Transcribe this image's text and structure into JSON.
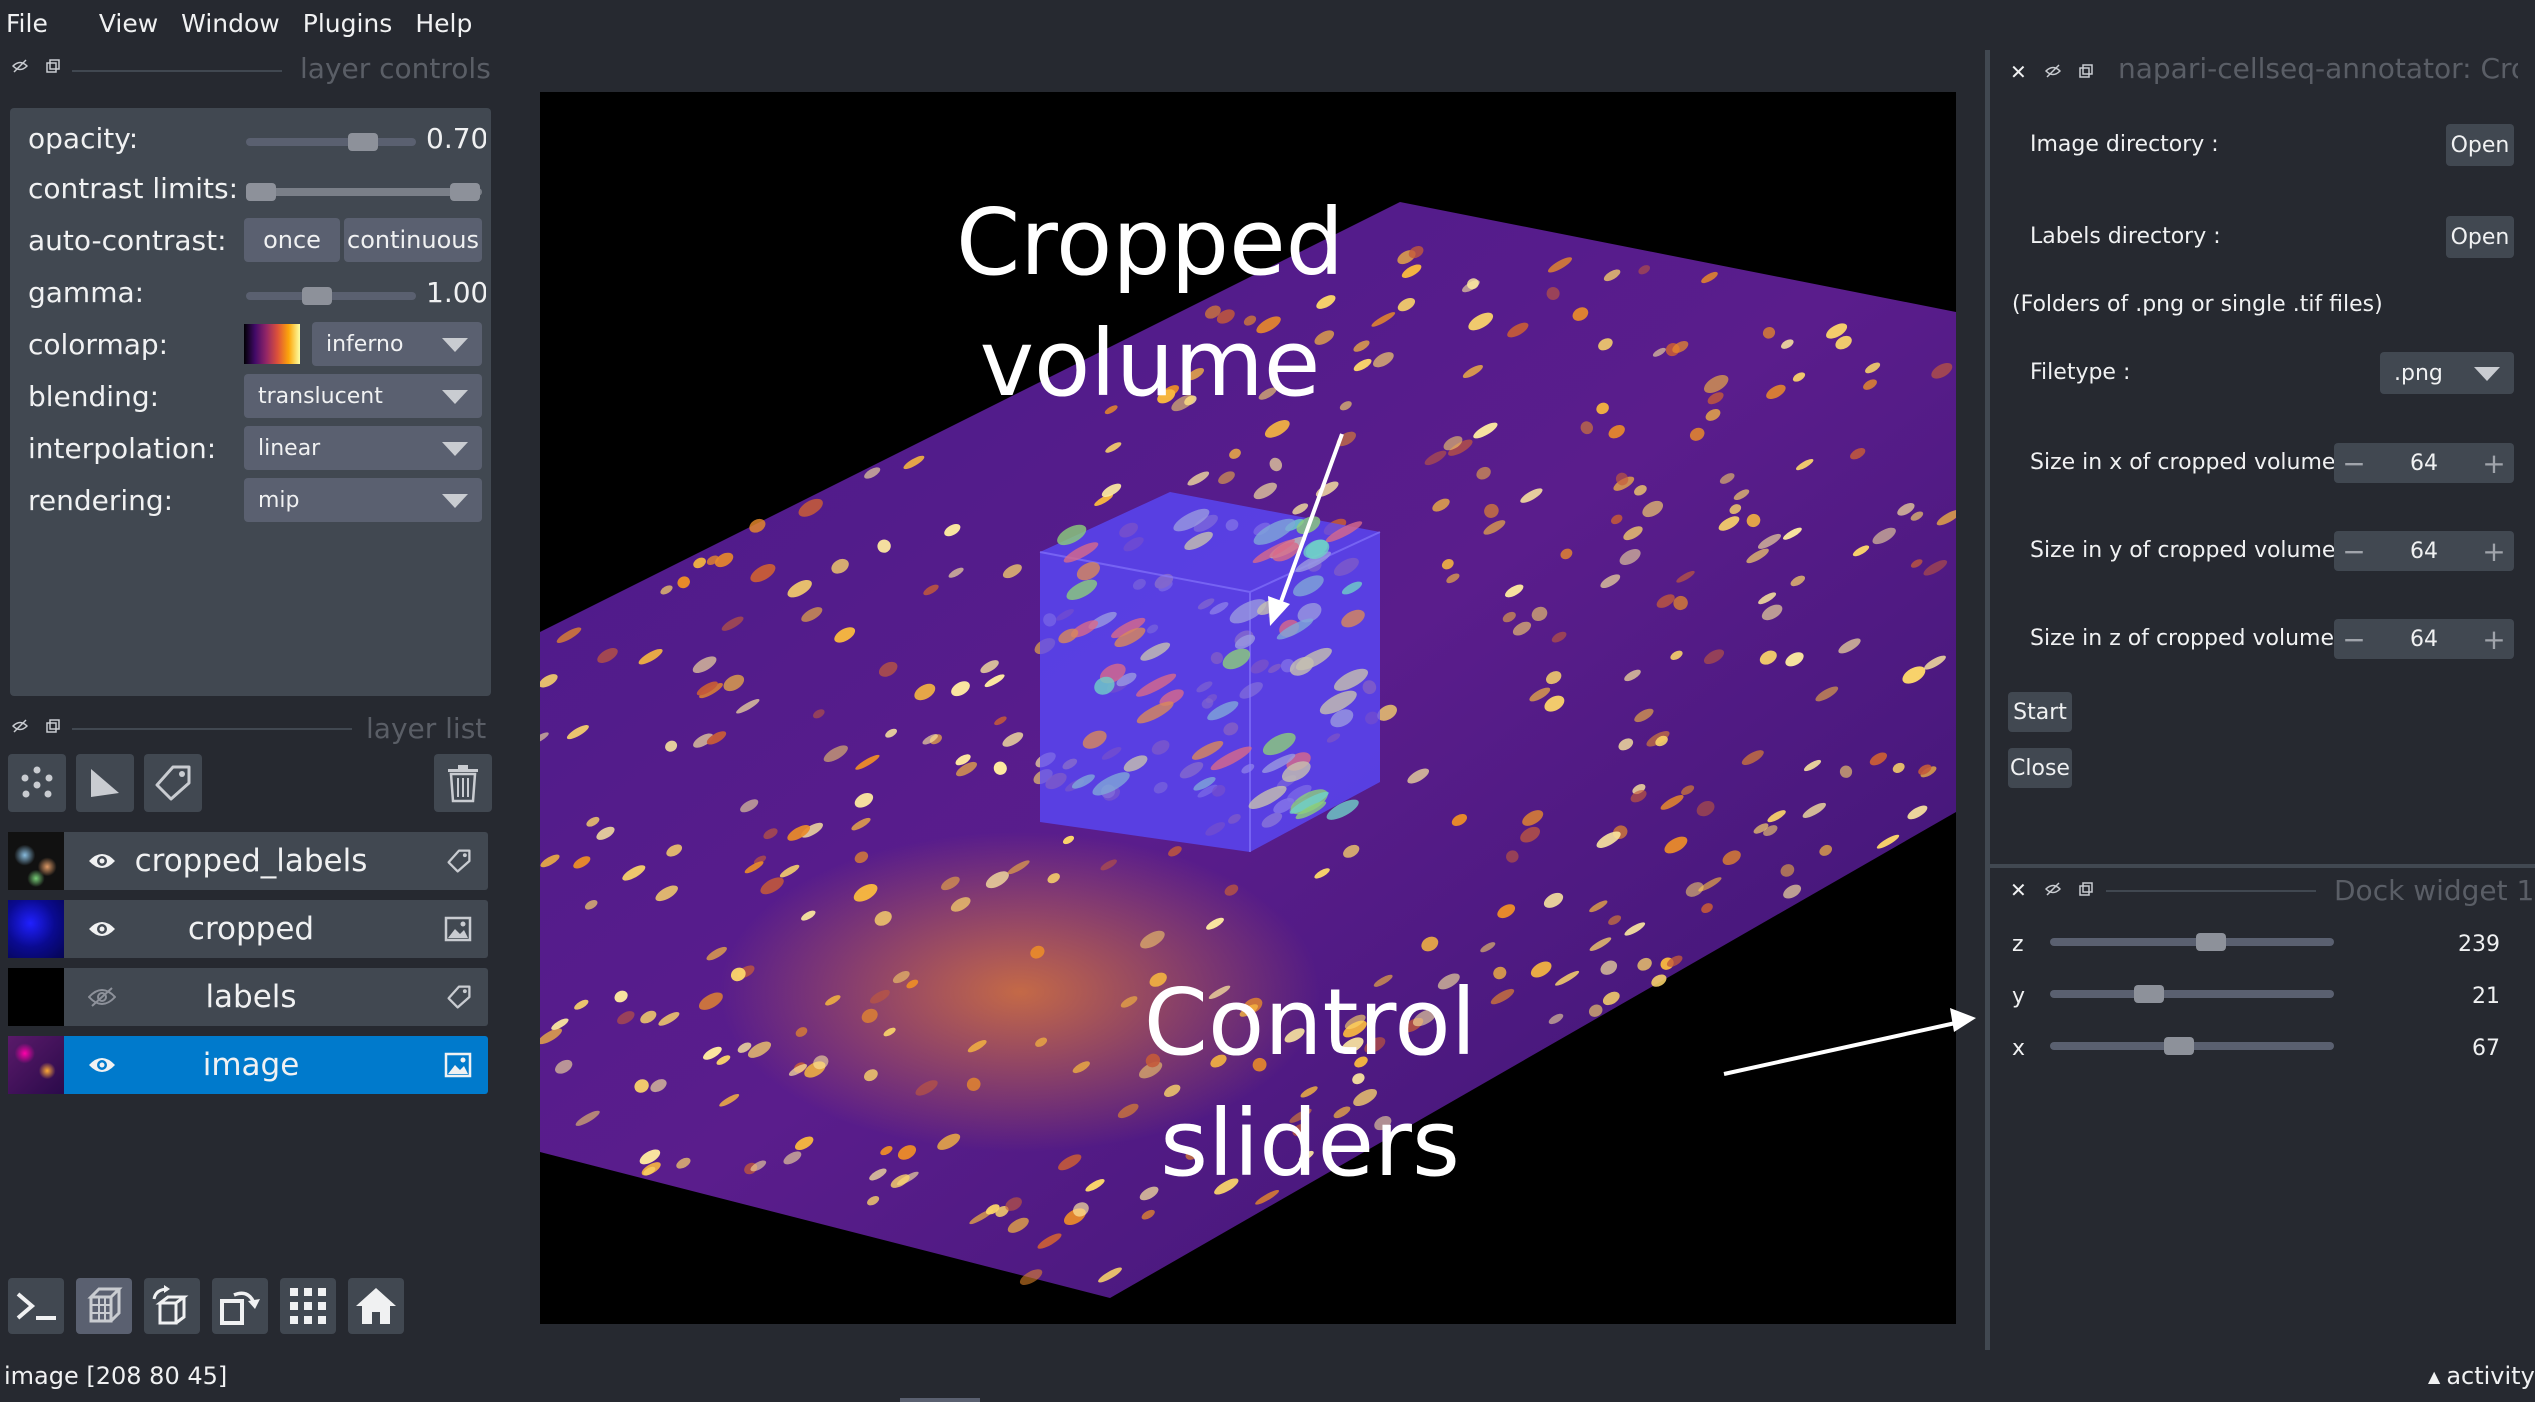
{
  "menu": [
    "File",
    "View",
    "Window",
    "Plugins",
    "Help"
  ],
  "layer_controls": {
    "title": "layer controls",
    "opacity_label": "opacity:",
    "opacity_value": "0.70",
    "opacity_fraction": 0.7,
    "contrast_label": "contrast limits:",
    "autocontrast_label": "auto-contrast:",
    "once_label": "once",
    "continuous_label": "continuous",
    "gamma_label": "gamma:",
    "gamma_value": "1.00",
    "colormap_label": "colormap:",
    "colormap_value": "inferno",
    "blending_label": "blending:",
    "blending_value": "translucent",
    "interpolation_label": "interpolation:",
    "interpolation_value": "linear",
    "rendering_label": "rendering:",
    "rendering_value": "mip"
  },
  "layer_list": {
    "title": "layer list",
    "layers": [
      {
        "name": "cropped_labels",
        "visible": true,
        "type": "labels"
      },
      {
        "name": "cropped",
        "visible": true,
        "type": "image"
      },
      {
        "name": "labels",
        "visible": false,
        "type": "labels"
      },
      {
        "name": "image",
        "visible": true,
        "type": "image",
        "selected": true
      }
    ]
  },
  "canvas": {
    "annotation_top_line1": "Cropped",
    "annotation_top_line2": "volume",
    "annotation_bottom_line1": "Control",
    "annotation_bottom_line2": "sliders"
  },
  "plugin": {
    "title": "napari-cellseq-annotator: Crop",
    "image_dir_label": "Image directory :",
    "labels_dir_label": "Labels directory :",
    "open_label": "Open",
    "note": "(Folders of .png or single .tif files)",
    "filetype_label": "Filetype :",
    "filetype_value": ".png",
    "size_x_label": "Size in x of cropped volume :",
    "size_y_label": "Size in y of cropped volume :",
    "size_z_label": "Size in z of cropped volume :",
    "size_x": "64",
    "size_y": "64",
    "size_z": "64",
    "start_label": "Start",
    "close_label": "Close"
  },
  "dock_widget": {
    "title": "Dock widget 1",
    "z_label": "z",
    "z_value": "239",
    "y_label": "y",
    "y_value": "21",
    "x_label": "x",
    "x_value": "67"
  },
  "status": {
    "text": "image [208  80  45]",
    "activity": "activity"
  },
  "colors": {
    "background": "#262930",
    "panel": "#414851",
    "selected": "#007acc"
  }
}
